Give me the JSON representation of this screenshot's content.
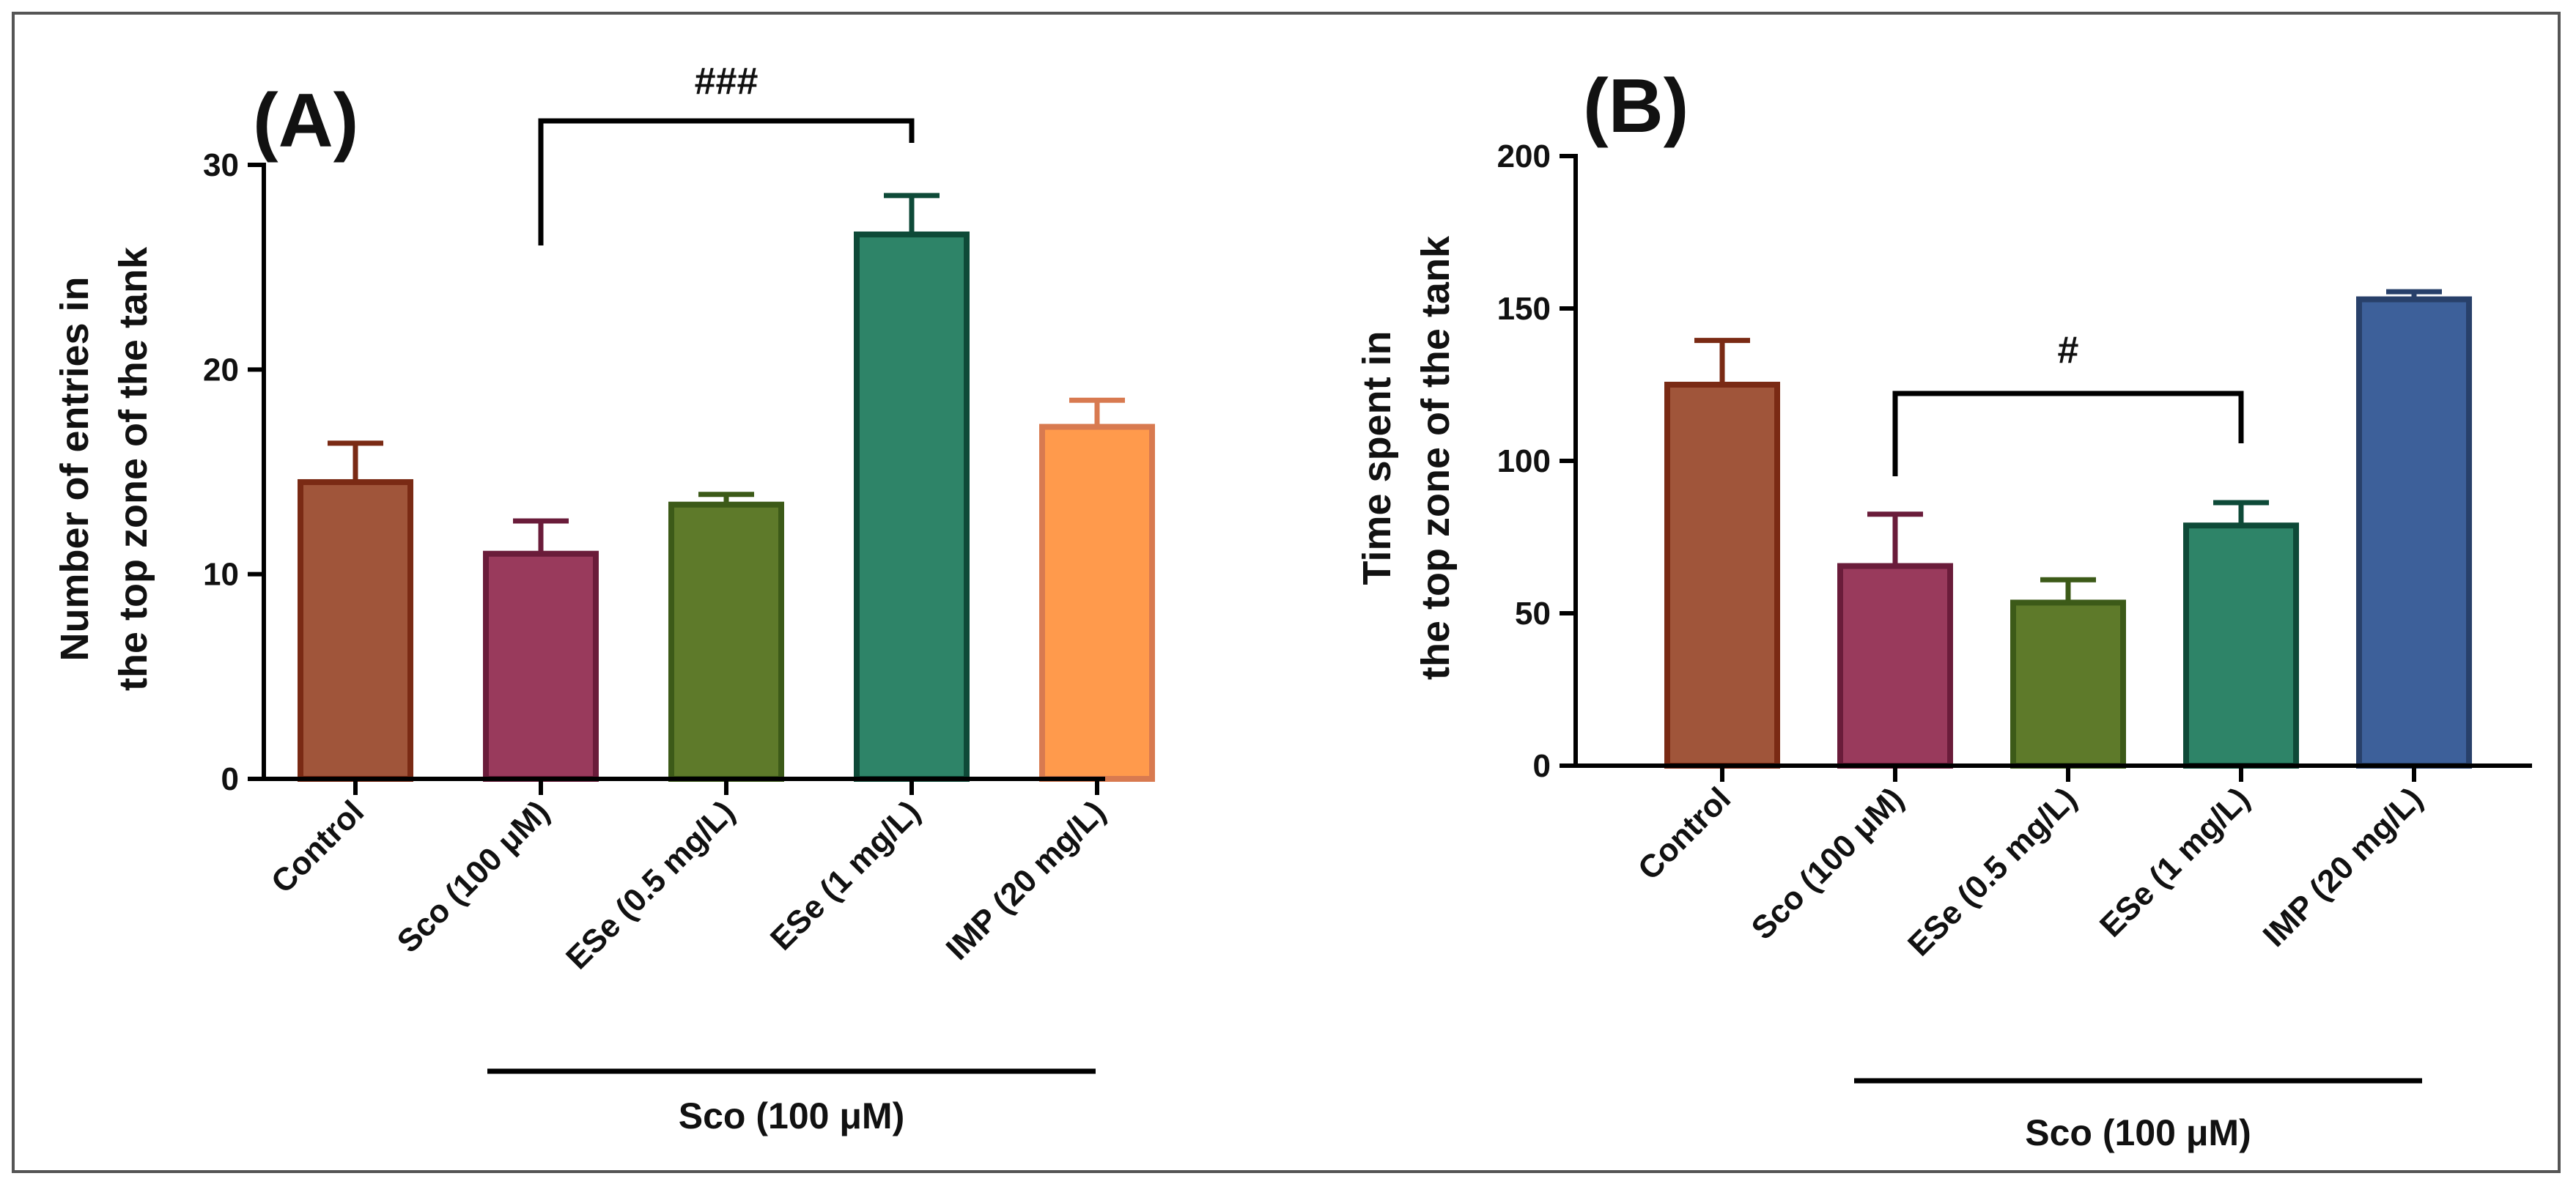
{
  "chart_data": [
    {
      "panel_label": "(A)",
      "type": "bar",
      "categories": [
        "Control",
        "Sco (100 μM)",
        "ESe (0.5 mg/L)",
        "ESe (1 mg/L)",
        "IMP (20 mg/L)"
      ],
      "values": [
        14.5,
        11.0,
        13.4,
        26.6,
        17.2
      ],
      "error_upper": [
        1.9,
        1.6,
        0.5,
        1.9,
        1.3
      ],
      "ylabel": [
        "Number of entries in",
        "the top zone of the tank"
      ],
      "ylim": [
        0,
        30
      ],
      "yticks": [
        0,
        10,
        20,
        30
      ],
      "group_bracket": {
        "label": "Sco (100 μM)",
        "from_category": 1,
        "to_category": 4
      },
      "significance": [
        {
          "from_category": 1,
          "to_category": 3,
          "label": "###"
        }
      ],
      "colors": {
        "fill": [
          "#A0553A",
          "#993A5C",
          "#5E7A2A",
          "#2E8468",
          "#FF9A4C"
        ],
        "stroke": [
          "#7A2A14",
          "#6A1C3A",
          "#3C5A18",
          "#0E4A38",
          "#D87A50"
        ]
      }
    },
    {
      "panel_label": "(B)",
      "type": "bar",
      "categories": [
        "Control",
        "Sco (100 μM)",
        "ESe (0.5 mg/L)",
        "ESe (1 mg/L)",
        "IMP (20 mg/L)"
      ],
      "values": [
        125,
        65.5,
        53.5,
        78.8,
        153
      ],
      "error_upper": [
        14.5,
        17,
        7.5,
        7.5,
        2.5
      ],
      "ylabel": [
        "Time spent in",
        "the top zone of the tank"
      ],
      "ylim": [
        0,
        200
      ],
      "yticks": [
        0,
        50,
        100,
        150,
        200
      ],
      "group_bracket": {
        "label": "Sco (100 μM)",
        "from_category": 1,
        "to_category": 4
      },
      "significance": [
        {
          "from_category": 1,
          "to_category": 3,
          "label": "#"
        }
      ],
      "colors": {
        "fill": [
          "#A0553A",
          "#993A5C",
          "#5E7A2A",
          "#2E8468",
          "#3D609A"
        ],
        "stroke": [
          "#7A2A14",
          "#6A1C3A",
          "#3C5A18",
          "#0E4A38",
          "#28406A"
        ]
      }
    }
  ]
}
